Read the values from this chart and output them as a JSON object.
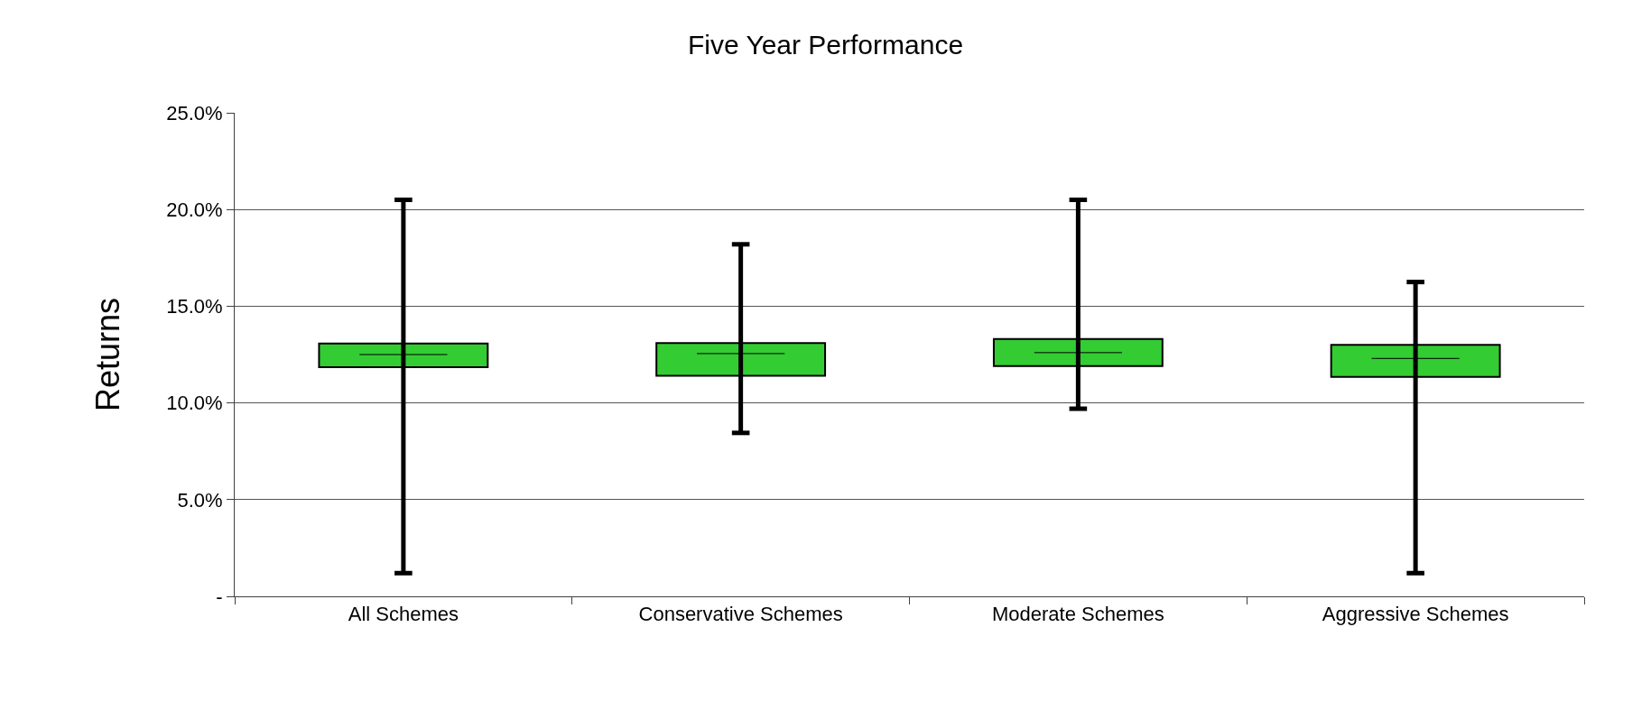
{
  "chart_data": {
    "type": "box",
    "title": "Five Year Performance",
    "ylabel": "Returns",
    "categories": [
      "All Schemes",
      "Conservative Schemes",
      "Moderate Schemes",
      "Aggressive Schemes"
    ],
    "boxes": [
      {
        "low": 1.2,
        "q1": 11.85,
        "median": 12.5,
        "q3": 13.07,
        "high": 20.5
      },
      {
        "low": 8.45,
        "q1": 11.4,
        "median": 12.55,
        "q3": 13.1,
        "high": 18.2
      },
      {
        "low": 9.7,
        "q1": 11.9,
        "median": 12.6,
        "q3": 13.3,
        "high": 20.5
      },
      {
        "low": 1.2,
        "q1": 11.35,
        "median": 12.3,
        "q3": 13.0,
        "high": 16.25
      }
    ],
    "color": "#33cc33",
    "ylim": [
      0,
      25
    ],
    "yticks": [
      {
        "value": 0,
        "label": "-"
      },
      {
        "value": 5,
        "label": "5.0%"
      },
      {
        "value": 10,
        "label": "10.0%"
      },
      {
        "value": 15,
        "label": "15.0%"
      },
      {
        "value": 20,
        "label": "20.0%"
      },
      {
        "value": 25,
        "label": "25.0%"
      }
    ],
    "grid": "y"
  }
}
